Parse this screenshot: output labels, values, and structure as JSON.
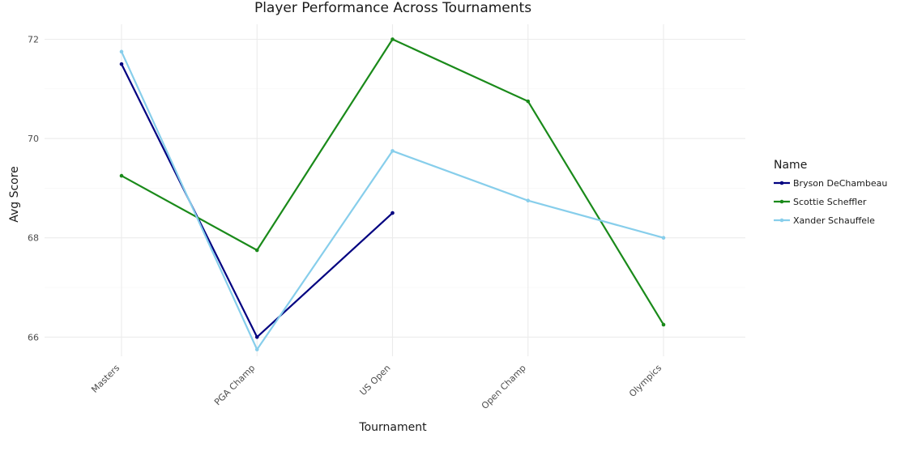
{
  "chart_data": {
    "type": "line",
    "title": "Player Performance Across Tournaments",
    "xlabel": "Tournament",
    "ylabel": "Avg Score",
    "categories": [
      "Masters",
      "PGA Champ",
      "US Open",
      "Open Champ",
      "Olympics"
    ],
    "ylim": [
      65.5,
      72.3
    ],
    "y_ticks": [
      66,
      68,
      70,
      72
    ],
    "grid": true,
    "legend": {
      "title": "Name",
      "placement": "right"
    },
    "series": [
      {
        "name": "Bryson DeChambeau",
        "color": "#000080",
        "values": [
          71.5,
          66.0,
          68.5,
          null,
          null
        ]
      },
      {
        "name": "Scottie Scheffler",
        "color": "#1a8a1a",
        "values": [
          69.25,
          67.75,
          72.0,
          70.75,
          66.25
        ]
      },
      {
        "name": "Xander Schauffele",
        "color": "#87ceeb",
        "values": [
          71.75,
          65.75,
          69.75,
          68.75,
          68.0
        ]
      }
    ]
  }
}
